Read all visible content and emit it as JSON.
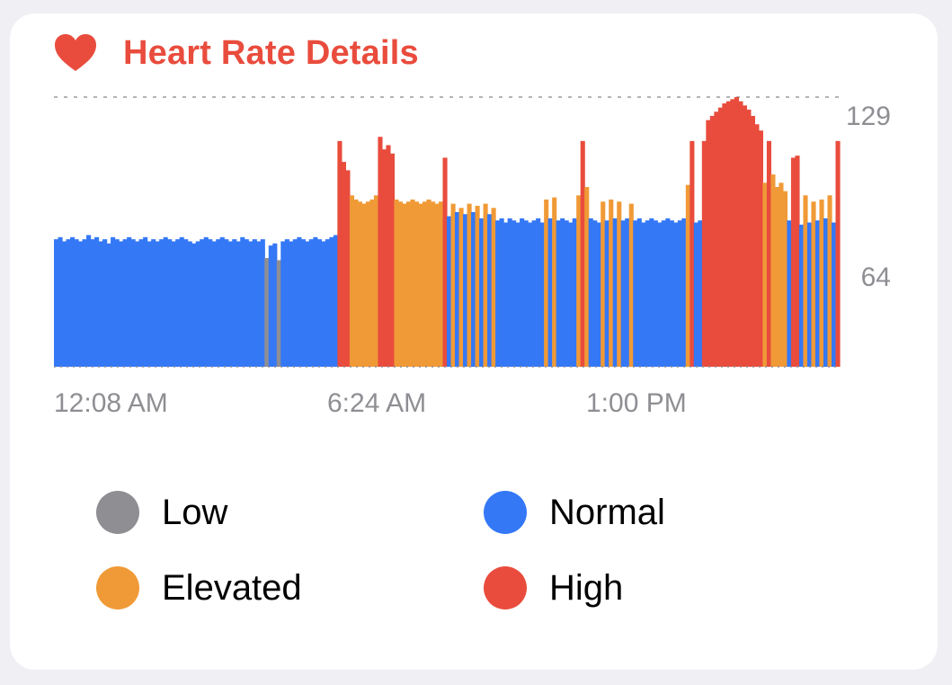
{
  "card": {
    "title": "Heart Rate Details",
    "icon": "heart-icon",
    "accent": "#E94C3D"
  },
  "legend": [
    {
      "label": "Low",
      "color": "#8E8E93"
    },
    {
      "label": "Normal",
      "color": "#3478F6"
    },
    {
      "label": "Elevated",
      "color": "#F09A37"
    },
    {
      "label": "High",
      "color": "#E94C3D"
    }
  ],
  "chart_data": {
    "type": "bar",
    "title": "Heart Rate Details",
    "xlabel": "",
    "ylabel": "",
    "ylim": [
      0,
      129
    ],
    "yticks": [
      64,
      129
    ],
    "xtick_labels": [
      "12:08 AM",
      "6:24 AM",
      "1:00 PM"
    ],
    "grid": "dashed reference lines at 129 and ~54",
    "categories_colors": {
      "Low": "#8E8E93",
      "Normal": "#3478F6",
      "Elevated": "#F09A37",
      "High": "#E94C3D"
    },
    "zone_sequence": [
      "N",
      "N",
      "N",
      "N",
      "N",
      "N",
      "N",
      "N",
      "N",
      "N",
      "N",
      "N",
      "N",
      "N",
      "N",
      "N",
      "N",
      "N",
      "N",
      "N",
      "N",
      "N",
      "N",
      "N",
      "N",
      "N",
      "N",
      "N",
      "N",
      "N",
      "N",
      "N",
      "N",
      "N",
      "N",
      "N",
      "N",
      "N",
      "N",
      "N",
      "N",
      "N",
      "N",
      "N",
      "N",
      "N",
      "N",
      "N",
      "N",
      "N",
      "N",
      "N",
      "L",
      "N",
      "N",
      "L",
      "N",
      "N",
      "N",
      "N",
      "N",
      "N",
      "N",
      "N",
      "N",
      "N",
      "N",
      "N",
      "N",
      "N",
      "H",
      "H",
      "H",
      "E",
      "E",
      "E",
      "E",
      "E",
      "E",
      "E",
      "H",
      "H",
      "H",
      "H",
      "E",
      "E",
      "E",
      "E",
      "E",
      "E",
      "E",
      "E",
      "E",
      "E",
      "E",
      "E",
      "H",
      "N",
      "E",
      "N",
      "E",
      "N",
      "E",
      "N",
      "E",
      "N",
      "E",
      "N",
      "E",
      "N",
      "N",
      "N",
      "N",
      "N",
      "N",
      "N",
      "N",
      "N",
      "N",
      "N",
      "N",
      "E",
      "N",
      "E",
      "N",
      "N",
      "N",
      "N",
      "N",
      "E",
      "H",
      "E",
      "N",
      "N",
      "N",
      "E",
      "N",
      "E",
      "N",
      "E",
      "N",
      "N",
      "E",
      "N",
      "N",
      "N",
      "N",
      "N",
      "N",
      "N",
      "N",
      "N",
      "N",
      "N",
      "N",
      "N",
      "E",
      "H",
      "N",
      "N",
      "H",
      "H",
      "H",
      "H",
      "H",
      "H",
      "H",
      "H",
      "H",
      "H",
      "H",
      "H",
      "H",
      "H",
      "H",
      "E",
      "H",
      "E",
      "E",
      "E",
      "E",
      "N",
      "H",
      "H",
      "N",
      "E",
      "N",
      "E",
      "N",
      "E",
      "N",
      "E",
      "N",
      "H"
    ],
    "values": [
      61,
      62,
      60,
      61,
      62,
      61,
      60,
      61,
      63,
      61,
      62,
      60,
      61,
      59,
      62,
      61,
      60,
      61,
      62,
      61,
      60,
      61,
      62,
      60,
      61,
      60,
      61,
      62,
      61,
      60,
      61,
      62,
      61,
      60,
      59,
      60,
      61,
      62,
      61,
      60,
      61,
      62,
      61,
      60,
      61,
      60,
      62,
      61,
      60,
      61,
      60,
      61,
      52,
      58,
      59,
      51,
      60,
      61,
      60,
      61,
      62,
      61,
      60,
      61,
      62,
      61,
      60,
      61,
      62,
      63,
      108,
      98,
      94,
      82,
      80,
      79,
      78,
      79,
      80,
      82,
      110,
      104,
      106,
      102,
      80,
      79,
      78,
      79,
      80,
      79,
      78,
      79,
      80,
      79,
      78,
      79,
      100,
      72,
      78,
      74,
      76,
      73,
      78,
      74,
      77,
      71,
      78,
      73,
      76,
      70,
      71,
      69,
      71,
      70,
      69,
      71,
      70,
      69,
      70,
      71,
      69,
      80,
      71,
      81,
      70,
      71,
      70,
      69,
      71,
      82,
      108,
      86,
      71,
      70,
      69,
      79,
      70,
      80,
      71,
      79,
      70,
      71,
      78,
      70,
      71,
      69,
      70,
      71,
      70,
      69,
      70,
      71,
      70,
      69,
      70,
      71,
      87,
      108,
      69,
      70,
      108,
      118,
      120,
      122,
      124,
      126,
      127,
      128,
      129,
      127,
      125,
      123,
      120,
      116,
      113,
      88,
      108,
      92,
      86,
      88,
      84,
      70,
      100,
      101,
      68,
      82,
      69,
      79,
      70,
      80,
      71,
      82,
      69,
      108
    ]
  }
}
